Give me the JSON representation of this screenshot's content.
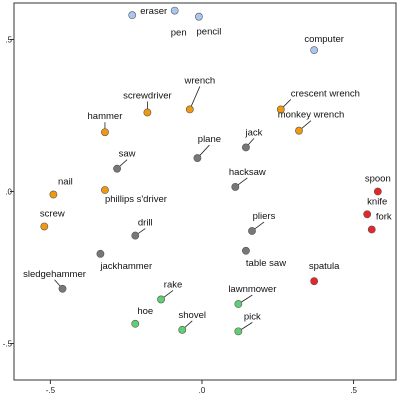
{
  "chart_data": {
    "type": "scatter",
    "title": "",
    "xlabel": "",
    "ylabel": "",
    "xlim": [
      -0.62,
      0.64
    ],
    "ylim": [
      -0.62,
      0.62
    ],
    "x_ticks": [
      {
        "value": -0.5,
        "label": "-.5"
      },
      {
        "value": 0.0,
        "label": ".0"
      },
      {
        "value": 0.5,
        "label": ".5"
      }
    ],
    "y_ticks": [
      {
        "value": 0.5,
        "label": ".5"
      },
      {
        "value": 0.0,
        "label": ".0"
      },
      {
        "value": -0.5,
        "label": "-.5"
      }
    ],
    "grid": false,
    "colors": {
      "blue": "#a9c6ef",
      "orange": "#f0980f",
      "gray": "#777777",
      "red": "#e8262a",
      "green": "#5fcf73"
    },
    "points": [
      {
        "label": "eraser",
        "x": -0.23,
        "y": 0.58,
        "color": "blue",
        "lx": 8,
        "ly": -1,
        "anchor": "start"
      },
      {
        "label": "pen",
        "x": -0.09,
        "y": 0.595,
        "color": "blue",
        "lx": 4,
        "ly": 25,
        "anchor": "middle"
      },
      {
        "label": "pencil",
        "x": -0.01,
        "y": 0.575,
        "color": "blue",
        "lx": 10,
        "ly": 18,
        "anchor": "middle"
      },
      {
        "label": "computer",
        "x": 0.37,
        "y": 0.465,
        "color": "blue",
        "lx": 10,
        "ly": -8,
        "anchor": "middle"
      },
      {
        "label": "hammer",
        "x": -0.32,
        "y": 0.195,
        "color": "orange",
        "lx": 0,
        "ly": -13,
        "anchor": "middle",
        "leader": true
      },
      {
        "label": "screwdriver",
        "x": -0.18,
        "y": 0.26,
        "color": "orange",
        "lx": 0,
        "ly": -14,
        "anchor": "middle",
        "leader": true
      },
      {
        "label": "wrench",
        "x": -0.04,
        "y": 0.27,
        "color": "orange",
        "lx": 10,
        "ly": -26,
        "anchor": "middle",
        "leader": true
      },
      {
        "label": "crescent wrench",
        "x": 0.26,
        "y": 0.27,
        "color": "orange",
        "lx": 10,
        "ly": -13,
        "anchor": "start",
        "leader": true
      },
      {
        "label": "monkey wrench",
        "x": 0.32,
        "y": 0.2,
        "color": "orange",
        "lx": 12,
        "ly": -13,
        "anchor": "middle",
        "leader": true
      },
      {
        "label": "nail",
        "x": -0.49,
        "y": -0.01,
        "color": "orange",
        "lx": 12,
        "ly": -10,
        "anchor": "middle"
      },
      {
        "label": "phillips s'driver",
        "x": -0.32,
        "y": 0.005,
        "color": "orange",
        "lx": 0,
        "ly": 12,
        "anchor": "start"
      },
      {
        "label": "screw",
        "x": -0.52,
        "y": -0.115,
        "color": "orange",
        "lx": 8,
        "ly": -10,
        "anchor": "middle"
      },
      {
        "label": "saw",
        "x": -0.28,
        "y": 0.075,
        "color": "gray",
        "lx": 10,
        "ly": -12,
        "anchor": "middle",
        "leader": true
      },
      {
        "label": "plane",
        "x": -0.015,
        "y": 0.11,
        "color": "gray",
        "lx": 12,
        "ly": -16,
        "anchor": "middle",
        "leader": true
      },
      {
        "label": "jack",
        "x": 0.145,
        "y": 0.145,
        "color": "gray",
        "lx": 8,
        "ly": -12,
        "anchor": "middle",
        "leader": true
      },
      {
        "label": "hacksaw",
        "x": 0.11,
        "y": 0.015,
        "color": "gray",
        "lx": 12,
        "ly": -12,
        "anchor": "middle",
        "leader": true
      },
      {
        "label": "drill",
        "x": -0.22,
        "y": -0.145,
        "color": "gray",
        "lx": 10,
        "ly": -10,
        "anchor": "middle",
        "leader": true
      },
      {
        "label": "pliers",
        "x": 0.165,
        "y": -0.13,
        "color": "gray",
        "lx": 12,
        "ly": -12,
        "anchor": "middle",
        "leader": true
      },
      {
        "label": "table saw",
        "x": 0.145,
        "y": -0.195,
        "color": "gray",
        "lx": 0,
        "ly": 15,
        "anchor": "start"
      },
      {
        "label": "jackhammer",
        "x": -0.335,
        "y": -0.205,
        "color": "gray",
        "lx": 0,
        "ly": 15,
        "anchor": "start"
      },
      {
        "label": "sledgehammer",
        "x": -0.46,
        "y": -0.32,
        "color": "gray",
        "lx": -8,
        "ly": -12,
        "anchor": "middle",
        "leader": true
      },
      {
        "label": "spoon",
        "x": 0.58,
        "y": 0.0,
        "color": "red",
        "lx": 0,
        "ly": -10,
        "anchor": "middle"
      },
      {
        "label": "knife",
        "x": 0.545,
        "y": -0.075,
        "color": "red",
        "lx": 10,
        "ly": -10,
        "anchor": "middle"
      },
      {
        "label": "fork",
        "x": 0.56,
        "y": -0.125,
        "color": "red",
        "lx": 12,
        "ly": -10,
        "anchor": "middle"
      },
      {
        "label": "spatula",
        "x": 0.37,
        "y": -0.295,
        "color": "red",
        "lx": 10,
        "ly": -12,
        "anchor": "middle"
      },
      {
        "label": "rake",
        "x": -0.135,
        "y": -0.355,
        "color": "green",
        "lx": 12,
        "ly": -12,
        "anchor": "middle",
        "leader": true
      },
      {
        "label": "lawnmower",
        "x": 0.12,
        "y": -0.37,
        "color": "green",
        "lx": 14,
        "ly": -12,
        "anchor": "middle",
        "leader": true
      },
      {
        "label": "hoe",
        "x": -0.22,
        "y": -0.435,
        "color": "green",
        "lx": 10,
        "ly": -10,
        "anchor": "middle"
      },
      {
        "label": "shovel",
        "x": -0.065,
        "y": -0.455,
        "color": "green",
        "lx": 10,
        "ly": -12,
        "anchor": "middle",
        "leader": true
      },
      {
        "label": "pick",
        "x": 0.12,
        "y": -0.46,
        "color": "green",
        "lx": 14,
        "ly": -12,
        "anchor": "middle",
        "leader": true
      }
    ]
  }
}
